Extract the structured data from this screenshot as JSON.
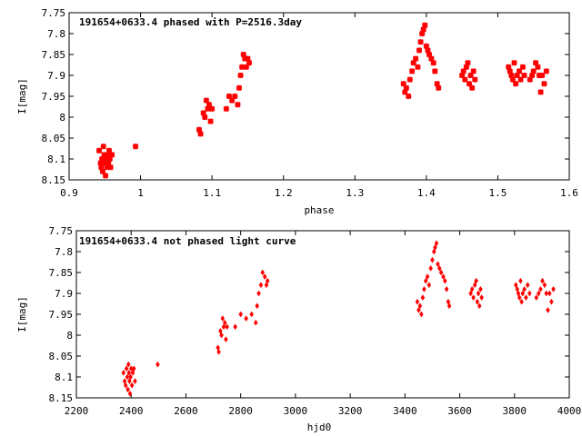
{
  "chart_data": [
    {
      "type": "scatter",
      "title": "191654+0633.4 phased with P=2516.3day",
      "xlabel": "phase",
      "ylabel": "I[mag]",
      "xlim": [
        0.9,
        1.6
      ],
      "ylim": [
        8.15,
        7.75
      ],
      "y_inverted": true,
      "xticks": [
        "0.9",
        "1",
        "1.1",
        "1.2",
        "1.3",
        "1.4",
        "1.5",
        "1.6"
      ],
      "yticks": [
        "7.75",
        "7.8",
        "7.85",
        "7.9",
        "7.95",
        "8",
        "8.05",
        "8.1",
        "8.15"
      ],
      "marker": "cross",
      "color": "#ff0000",
      "grid": false,
      "series": [
        {
          "points": [
            [
              0.942,
              8.08
            ],
            [
              0.944,
              8.11
            ],
            [
              0.945,
              8.12
            ],
            [
              0.946,
              8.1
            ],
            [
              0.947,
              8.13
            ],
            [
              0.948,
              8.07
            ],
            [
              0.949,
              8.09
            ],
            [
              0.95,
              8.11
            ],
            [
              0.951,
              8.14
            ],
            [
              0.952,
              8.1
            ],
            [
              0.953,
              8.12
            ],
            [
              0.954,
              8.09
            ],
            [
              0.955,
              8.11
            ],
            [
              0.956,
              8.08
            ],
            [
              0.957,
              8.1
            ],
            [
              0.958,
              8.12
            ],
            [
              0.96,
              8.09
            ],
            [
              0.993,
              8.07
            ],
            [
              1.082,
              8.03
            ],
            [
              1.084,
              8.04
            ],
            [
              1.088,
              7.99
            ],
            [
              1.09,
              8.0
            ],
            [
              1.092,
              7.96
            ],
            [
              1.094,
              7.98
            ],
            [
              1.096,
              7.97
            ],
            [
              1.098,
              8.01
            ],
            [
              1.1,
              7.98
            ],
            [
              1.12,
              7.98
            ],
            [
              1.124,
              7.95
            ],
            [
              1.128,
              7.96
            ],
            [
              1.132,
              7.95
            ],
            [
              1.136,
              7.97
            ],
            [
              1.138,
              7.93
            ],
            [
              1.14,
              7.9
            ],
            [
              1.142,
              7.88
            ],
            [
              1.144,
              7.85
            ],
            [
              1.146,
              7.86
            ],
            [
              1.148,
              7.88
            ],
            [
              1.15,
              7.86
            ],
            [
              1.152,
              7.87
            ],
            [
              1.368,
              7.92
            ],
            [
              1.37,
              7.94
            ],
            [
              1.372,
              7.93
            ],
            [
              1.375,
              7.95
            ],
            [
              1.377,
              7.91
            ],
            [
              1.38,
              7.89
            ],
            [
              1.382,
              7.87
            ],
            [
              1.385,
              7.86
            ],
            [
              1.388,
              7.88
            ],
            [
              1.39,
              7.84
            ],
            [
              1.392,
              7.82
            ],
            [
              1.394,
              7.8
            ],
            [
              1.396,
              7.79
            ],
            [
              1.398,
              7.78
            ],
            [
              1.4,
              7.83
            ],
            [
              1.402,
              7.84
            ],
            [
              1.404,
              7.85
            ],
            [
              1.407,
              7.86
            ],
            [
              1.41,
              7.87
            ],
            [
              1.412,
              7.89
            ],
            [
              1.415,
              7.92
            ],
            [
              1.417,
              7.93
            ],
            [
              1.45,
              7.9
            ],
            [
              1.452,
              7.89
            ],
            [
              1.454,
              7.91
            ],
            [
              1.456,
              7.88
            ],
            [
              1.458,
              7.87
            ],
            [
              1.46,
              7.92
            ],
            [
              1.462,
              7.9
            ],
            [
              1.464,
              7.93
            ],
            [
              1.466,
              7.89
            ],
            [
              1.468,
              7.91
            ],
            [
              1.515,
              7.88
            ],
            [
              1.517,
              7.89
            ],
            [
              1.519,
              7.9
            ],
            [
              1.521,
              7.91
            ],
            [
              1.523,
              7.87
            ],
            [
              1.525,
              7.92
            ],
            [
              1.527,
              7.9
            ],
            [
              1.53,
              7.89
            ],
            [
              1.532,
              7.91
            ],
            [
              1.535,
              7.88
            ],
            [
              1.537,
              7.9
            ],
            [
              1.545,
              7.91
            ],
            [
              1.548,
              7.9
            ],
            [
              1.55,
              7.89
            ],
            [
              1.553,
              7.87
            ],
            [
              1.556,
              7.88
            ],
            [
              1.558,
              7.9
            ],
            [
              1.56,
              7.94
            ],
            [
              1.562,
              7.9
            ],
            [
              1.565,
              7.92
            ],
            [
              1.568,
              7.89
            ]
          ]
        }
      ]
    },
    {
      "type": "scatter",
      "title": "191654+0633.4 not phased light curve",
      "xlabel": "hjd0",
      "ylabel": "I[mag]",
      "xlim": [
        2200,
        4000
      ],
      "ylim": [
        8.15,
        7.75
      ],
      "y_inverted": true,
      "xticks": [
        "2200",
        "2400",
        "2600",
        "2800",
        "3000",
        "3200",
        "3400",
        "3600",
        "3800",
        "4000"
      ],
      "yticks": [
        "7.75",
        "7.8",
        "7.85",
        "7.9",
        "7.95",
        "8",
        "8.05",
        "8.1",
        "8.15"
      ],
      "marker": "diamond",
      "color": "#ff0000",
      "grid": false,
      "series": [
        {
          "points": [
            [
              2372,
              8.09
            ],
            [
              2376,
              8.11
            ],
            [
              2380,
              8.12
            ],
            [
              2383,
              8.08
            ],
            [
              2386,
              8.1
            ],
            [
              2388,
              8.13
            ],
            [
              2390,
              8.07
            ],
            [
              2392,
              8.09
            ],
            [
              2394,
              8.11
            ],
            [
              2396,
              8.14
            ],
            [
              2398,
              8.1
            ],
            [
              2400,
              8.08
            ],
            [
              2403,
              8.12
            ],
            [
              2406,
              8.09
            ],
            [
              2410,
              8.08
            ],
            [
              2414,
              8.11
            ],
            [
              2497,
              8.07
            ],
            [
              2717,
              8.03
            ],
            [
              2720,
              8.04
            ],
            [
              2726,
              7.99
            ],
            [
              2730,
              8.0
            ],
            [
              2734,
              7.96
            ],
            [
              2738,
              7.98
            ],
            [
              2742,
              7.97
            ],
            [
              2746,
              8.01
            ],
            [
              2750,
              7.98
            ],
            [
              2780,
              7.98
            ],
            [
              2800,
              7.95
            ],
            [
              2820,
              7.96
            ],
            [
              2840,
              7.95
            ],
            [
              2855,
              7.97
            ],
            [
              2860,
              7.93
            ],
            [
              2866,
              7.9
            ],
            [
              2874,
              7.88
            ],
            [
              2880,
              7.85
            ],
            [
              2888,
              7.86
            ],
            [
              2894,
              7.88
            ],
            [
              2898,
              7.87
            ],
            [
              3445,
              7.92
            ],
            [
              3450,
              7.94
            ],
            [
              3455,
              7.93
            ],
            [
              3460,
              7.95
            ],
            [
              3465,
              7.91
            ],
            [
              3470,
              7.89
            ],
            [
              3476,
              7.87
            ],
            [
              3482,
              7.86
            ],
            [
              3488,
              7.88
            ],
            [
              3494,
              7.84
            ],
            [
              3500,
              7.82
            ],
            [
              3506,
              7.8
            ],
            [
              3510,
              7.79
            ],
            [
              3515,
              7.78
            ],
            [
              3520,
              7.83
            ],
            [
              3526,
              7.84
            ],
            [
              3532,
              7.85
            ],
            [
              3540,
              7.86
            ],
            [
              3546,
              7.87
            ],
            [
              3552,
              7.89
            ],
            [
              3558,
              7.92
            ],
            [
              3562,
              7.93
            ],
            [
              3640,
              7.9
            ],
            [
              3645,
              7.89
            ],
            [
              3650,
              7.91
            ],
            [
              3655,
              7.88
            ],
            [
              3660,
              7.87
            ],
            [
              3664,
              7.92
            ],
            [
              3668,
              7.9
            ],
            [
              3672,
              7.93
            ],
            [
              3676,
              7.89
            ],
            [
              3680,
              7.91
            ],
            [
              3805,
              7.88
            ],
            [
              3810,
              7.89
            ],
            [
              3814,
              7.9
            ],
            [
              3818,
              7.91
            ],
            [
              3822,
              7.87
            ],
            [
              3826,
              7.92
            ],
            [
              3830,
              7.9
            ],
            [
              3836,
              7.89
            ],
            [
              3842,
              7.91
            ],
            [
              3848,
              7.88
            ],
            [
              3855,
              7.9
            ],
            [
              3880,
              7.91
            ],
            [
              3888,
              7.9
            ],
            [
              3895,
              7.89
            ],
            [
              3902,
              7.87
            ],
            [
              3910,
              7.88
            ],
            [
              3916,
              7.9
            ],
            [
              3922,
              7.94
            ],
            [
              3928,
              7.9
            ],
            [
              3935,
              7.92
            ],
            [
              3942,
              7.89
            ]
          ]
        }
      ]
    }
  ]
}
